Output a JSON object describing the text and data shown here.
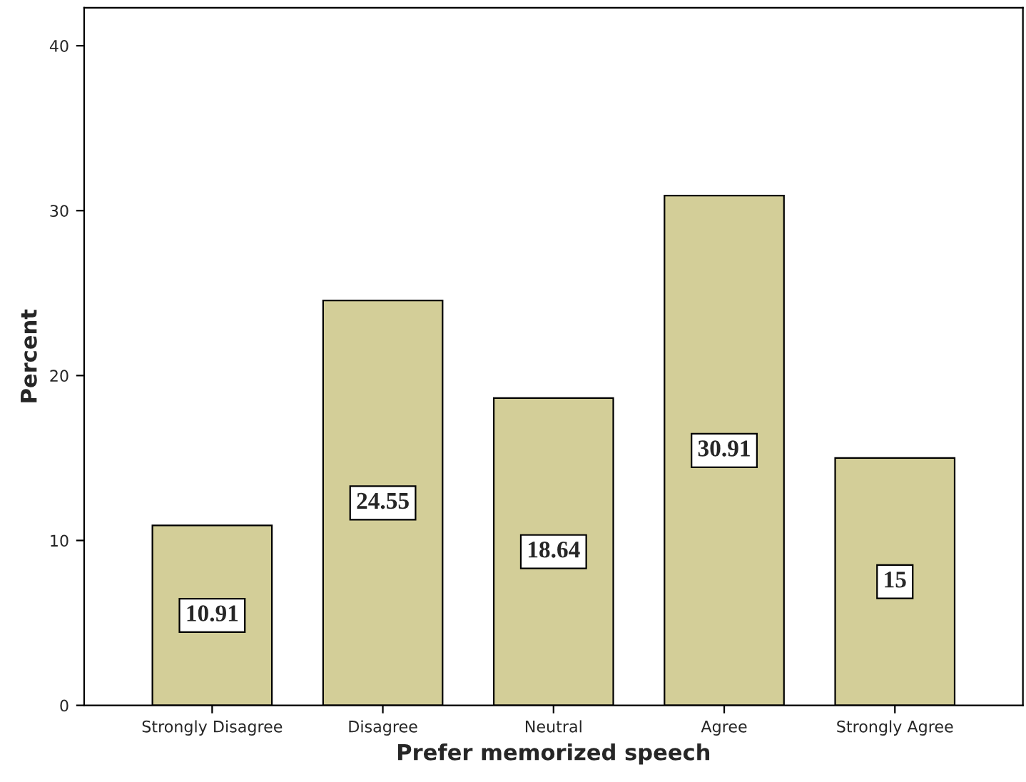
{
  "chart_data": {
    "type": "bar",
    "xlabel": "Prefer memorized speech",
    "ylabel": "Percent",
    "categories": [
      "Strongly Disagree",
      "Disagree",
      "Neutral",
      "Agree",
      "Strongly Agree"
    ],
    "values": [
      10.91,
      24.55,
      18.64,
      30.91,
      15
    ],
    "color": "#d3ce98",
    "ylim": [
      0,
      42.3
    ],
    "yticks": [
      0,
      10,
      20,
      30,
      40
    ],
    "data_labels": true,
    "grid": false
  }
}
